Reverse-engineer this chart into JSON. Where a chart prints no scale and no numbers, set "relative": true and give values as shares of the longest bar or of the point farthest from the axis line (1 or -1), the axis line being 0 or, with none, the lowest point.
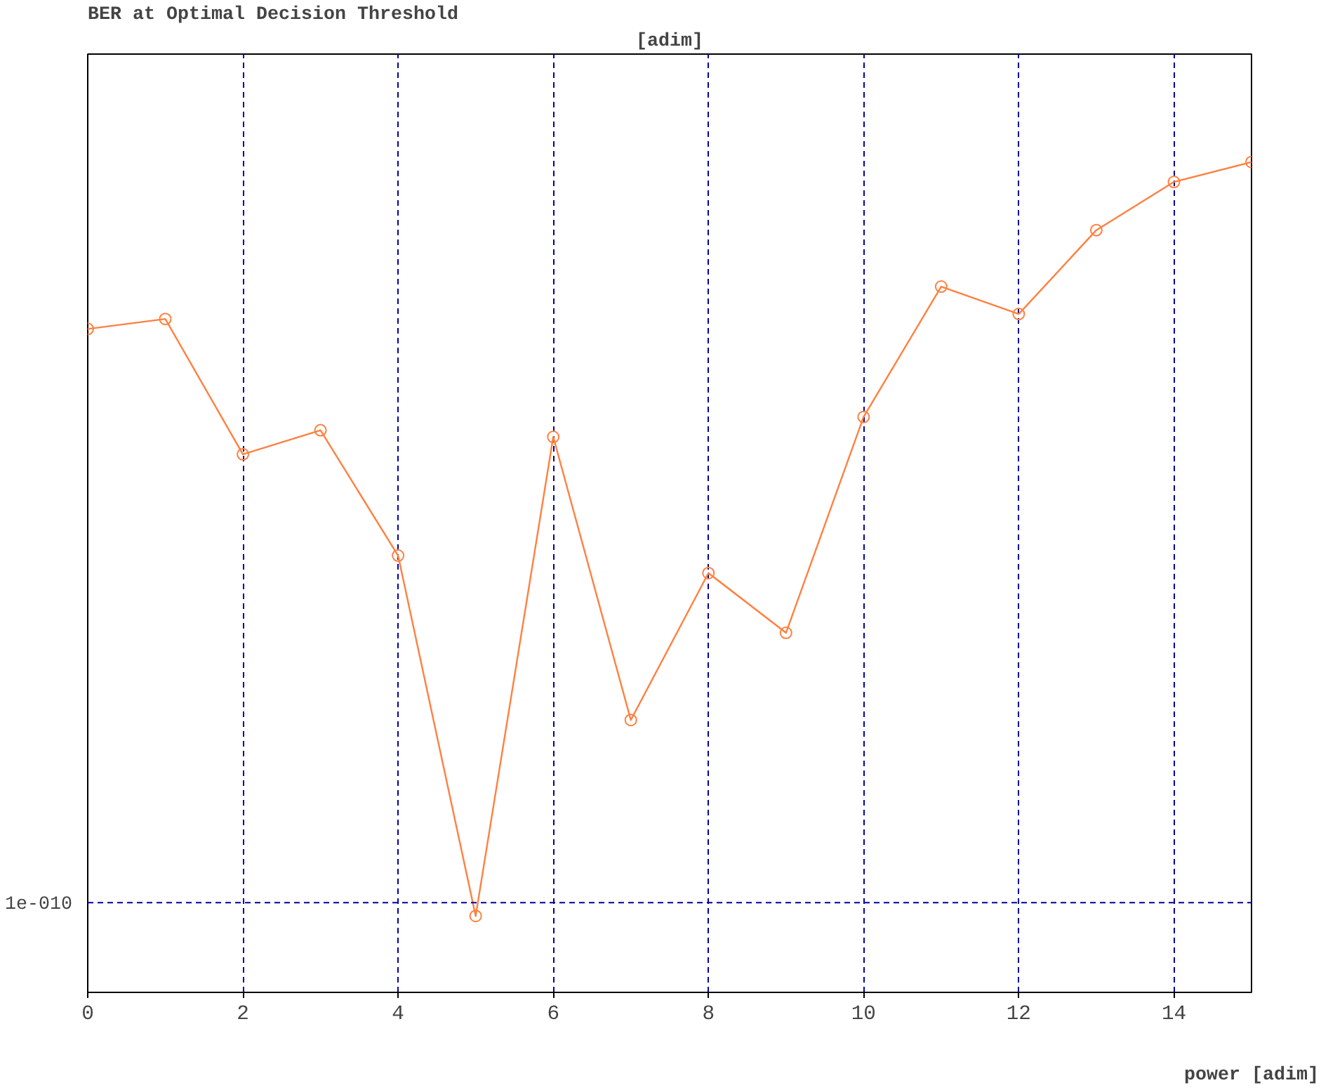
{
  "chart_data": {
    "type": "line",
    "title": "BER at Optimal Decision Threshold",
    "annotations": [
      "[adim]"
    ],
    "xlabel": "power [adim]",
    "relative": true,
    "x": [
      0,
      1,
      2,
      3,
      4,
      5,
      6,
      7,
      8,
      9,
      10,
      11,
      12,
      13,
      14,
      15
    ],
    "series": [
      {
        "color": "#ff8040",
        "values": [
          0.799,
          0.811,
          0.648,
          0.677,
          0.526,
          0.092,
          0.669,
          0.328,
          0.505,
          0.433,
          0.693,
          0.85,
          0.817,
          0.918,
          0.976,
          1.0
        ]
      }
    ],
    "xlim": [
      0,
      15
    ],
    "xticks": [
      0,
      2,
      4,
      6,
      8,
      10,
      12,
      14
    ],
    "grid": "x",
    "marker": "circle",
    "line_style": "solid",
    "ref_lines": [
      {
        "axis": "y",
        "value": 0.108,
        "label": "1e-010",
        "color": "#0000a0",
        "line_style": "dashed"
      }
    ]
  }
}
